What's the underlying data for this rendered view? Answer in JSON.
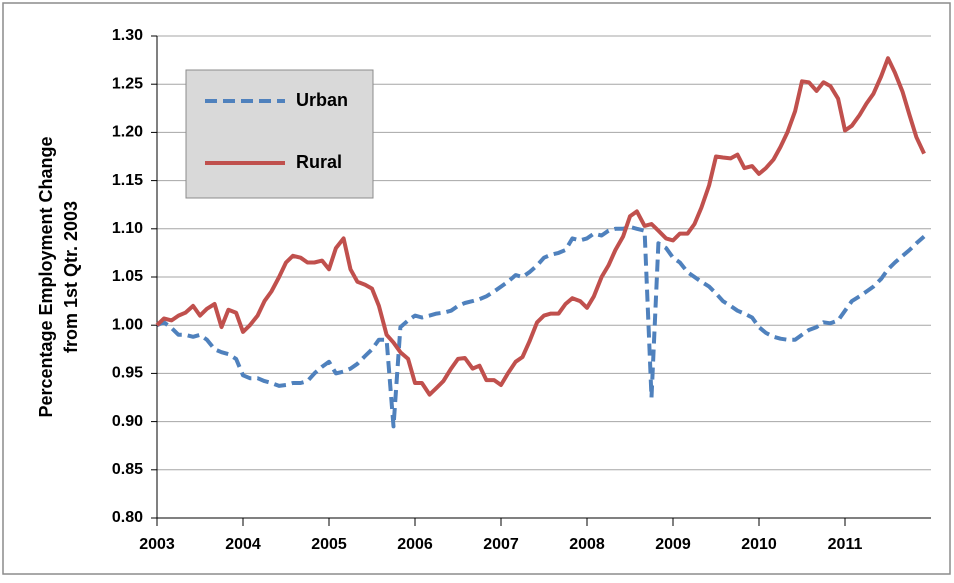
{
  "chart_data": {
    "type": "line",
    "ylabel": [
      "Percentage Employment Change",
      "from 1st Qtr. 2003"
    ],
    "x": [
      2003,
      2003.08,
      2003.17,
      2003.25,
      2003.33,
      2003.42,
      2003.5,
      2003.58,
      2003.67,
      2003.75,
      2003.83,
      2003.92,
      2004,
      2004.08,
      2004.17,
      2004.25,
      2004.33,
      2004.42,
      2004.5,
      2004.58,
      2004.67,
      2004.75,
      2004.83,
      2004.92,
      2005,
      2005.08,
      2005.17,
      2005.25,
      2005.33,
      2005.42,
      2005.5,
      2005.58,
      2005.67,
      2005.75,
      2005.83,
      2005.92,
      2006,
      2006.08,
      2006.17,
      2006.25,
      2006.33,
      2006.42,
      2006.5,
      2006.58,
      2006.67,
      2006.75,
      2006.83,
      2006.92,
      2007,
      2007.08,
      2007.17,
      2007.25,
      2007.33,
      2007.42,
      2007.5,
      2007.58,
      2007.67,
      2007.75,
      2007.83,
      2007.92,
      2008,
      2008.08,
      2008.17,
      2008.25,
      2008.33,
      2008.42,
      2008.5,
      2008.58,
      2008.67,
      2008.75,
      2008.83,
      2008.92,
      2009,
      2009.08,
      2009.17,
      2009.25,
      2009.33,
      2009.42,
      2009.5,
      2009.58,
      2009.67,
      2009.75,
      2009.83,
      2009.92,
      2010,
      2010.08,
      2010.17,
      2010.25,
      2010.33,
      2010.42,
      2010.5,
      2010.58,
      2010.67,
      2010.75,
      2010.83,
      2010.92,
      2011,
      2011.08,
      2011.17,
      2011.25,
      2011.33,
      2011.42,
      2011.5,
      2011.58,
      2011.67,
      2011.75,
      2011.83,
      2011.92
    ],
    "series": [
      {
        "name": "Urban",
        "color": "#4f81bd",
        "dash": true,
        "values": [
          1.0,
          1.003,
          0.997,
          0.99,
          0.99,
          0.988,
          0.99,
          0.985,
          0.975,
          0.972,
          0.97,
          0.965,
          0.948,
          0.945,
          0.945,
          0.942,
          0.94,
          0.937,
          0.938,
          0.94,
          0.94,
          0.942,
          0.95,
          0.957,
          0.962,
          0.95,
          0.952,
          0.955,
          0.96,
          0.968,
          0.975,
          0.985,
          0.985,
          0.895,
          0.998,
          1.005,
          1.01,
          1.008,
          1.01,
          1.012,
          1.013,
          1.015,
          1.02,
          1.023,
          1.025,
          1.027,
          1.03,
          1.035,
          1.04,
          1.045,
          1.052,
          1.05,
          1.055,
          1.062,
          1.07,
          1.073,
          1.075,
          1.078,
          1.09,
          1.088,
          1.09,
          1.095,
          1.093,
          1.098,
          1.1,
          1.1,
          1.102,
          1.1,
          1.098,
          0.925,
          1.085,
          1.08,
          1.07,
          1.065,
          1.055,
          1.05,
          1.045,
          1.04,
          1.033,
          1.025,
          1.02,
          1.015,
          1.012,
          1.008,
          0.998,
          0.992,
          0.988,
          0.986,
          0.985,
          0.985,
          0.99,
          0.995,
          0.998,
          1.003,
          1.002,
          1.005,
          1.015,
          1.025,
          1.03,
          1.035,
          1.04,
          1.048,
          1.058,
          1.065,
          1.072,
          1.078,
          1.085,
          1.092
        ]
      },
      {
        "name": "Rural",
        "color": "#c0504d",
        "dash": false,
        "values": [
          1.0,
          1.007,
          1.005,
          1.01,
          1.013,
          1.02,
          1.01,
          1.017,
          1.022,
          0.998,
          1.016,
          1.013,
          0.993,
          1.0,
          1.01,
          1.025,
          1.035,
          1.05,
          1.065,
          1.072,
          1.07,
          1.065,
          1.065,
          1.067,
          1.058,
          1.08,
          1.09,
          1.058,
          1.045,
          1.042,
          1.038,
          1.02,
          0.99,
          0.982,
          0.972,
          0.965,
          0.94,
          0.94,
          0.928,
          0.935,
          0.942,
          0.955,
          0.965,
          0.966,
          0.955,
          0.958,
          0.943,
          0.943,
          0.938,
          0.95,
          0.962,
          0.967,
          0.983,
          1.003,
          1.01,
          1.012,
          1.012,
          1.022,
          1.028,
          1.025,
          1.018,
          1.03,
          1.05,
          1.062,
          1.078,
          1.092,
          1.113,
          1.118,
          1.103,
          1.105,
          1.098,
          1.09,
          1.088,
          1.095,
          1.095,
          1.105,
          1.122,
          1.145,
          1.175,
          1.174,
          1.173,
          1.177,
          1.163,
          1.165,
          1.157,
          1.163,
          1.172,
          1.185,
          1.2,
          1.222,
          1.253,
          1.252,
          1.243,
          1.252,
          1.248,
          1.235,
          1.202,
          1.207,
          1.218,
          1.23,
          1.24,
          1.258,
          1.277,
          1.262,
          1.242,
          1.218,
          1.195,
          1.178
        ]
      }
    ],
    "xlim": [
      2003,
      2012
    ],
    "xticks": [
      2003,
      2004,
      2005,
      2006,
      2007,
      2008,
      2009,
      2010,
      2011
    ],
    "ylim": [
      0.8,
      1.3
    ],
    "yticks": [
      {
        "value": 0.8,
        "label": "0.80"
      },
      0.85,
      {
        "value": 0.9,
        "label": "0.90"
      },
      0.95,
      {
        "value": 1.0,
        "label": "1.00"
      },
      1.05,
      {
        "value": 1.1,
        "label": "1.10"
      },
      1.15,
      {
        "value": 1.2,
        "label": "1.20"
      },
      1.25,
      {
        "value": 1.3,
        "label": "1.30"
      }
    ],
    "grid": true
  }
}
